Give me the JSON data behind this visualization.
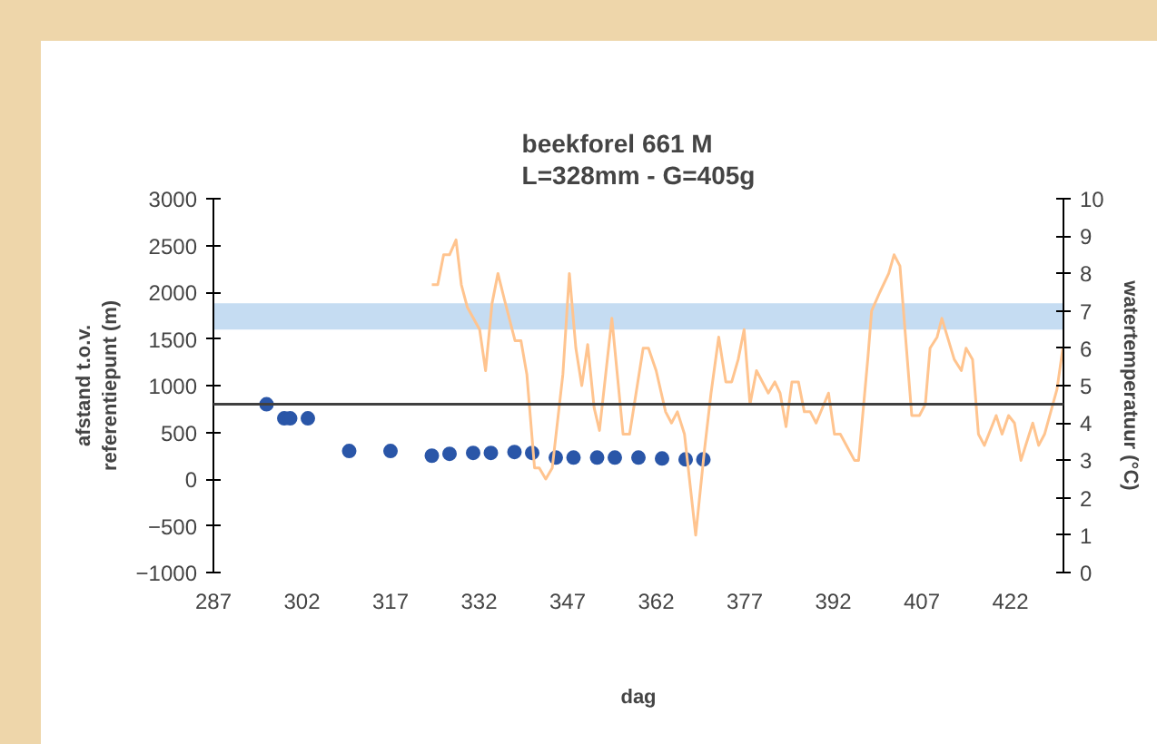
{
  "chart_data": {
    "type": "scatter",
    "title": "beekforel 661 M\nL=328mm - G=405g",
    "xlabel": "dag",
    "ylabel": "afstand t.o.v.\nreferentiepunt (m)",
    "y2label": "watertemperatuur (°C)",
    "xlim": [
      287,
      431
    ],
    "xticks": [
      287,
      302,
      317,
      332,
      347,
      362,
      377,
      392,
      407,
      422
    ],
    "ylim": [
      -1000,
      3000
    ],
    "yticks": [
      -1000,
      -500,
      0,
      500,
      1000,
      1500,
      2000,
      2500,
      3000
    ],
    "y2lim": [
      0,
      10
    ],
    "y2ticks": [
      0,
      1,
      2,
      3,
      4,
      5,
      6,
      7,
      8,
      9,
      10
    ],
    "grid": false,
    "series": [
      {
        "marker": "circle",
        "color": "#2a56a8",
        "x": [
          296,
          299,
          300,
          303,
          310,
          317,
          324,
          327,
          331,
          334,
          338,
          341,
          345,
          348,
          352,
          355,
          359,
          363,
          367,
          370
        ],
        "values": [
          800,
          650,
          650,
          650,
          300,
          300,
          250,
          270,
          280,
          280,
          290,
          280,
          230,
          230,
          230,
          230,
          230,
          220,
          210,
          210
        ]
      },
      {
        "type": "line",
        "axis": "y2",
        "color": "#ffc48f",
        "x": [
          324.0,
          325.0,
          326.0,
          327.0,
          328.1,
          329.0,
          330.0,
          332.1,
          333.1,
          334.2,
          335.2,
          336.3,
          338.1,
          339.1,
          340.1,
          341.4,
          342.2,
          343.3,
          344.4,
          346.2,
          347.3,
          348.4,
          349.4,
          350.4,
          351.5,
          352.4,
          354.5,
          356.4,
          357.5,
          359.8,
          360.7,
          362.0,
          363.6,
          364.6,
          365.6,
          366.8,
          368.7,
          370.2,
          371.3,
          372.6,
          373.8,
          374.8,
          375.9,
          376.9,
          377.9,
          379.0,
          381.0,
          382.1,
          383.0,
          384.0,
          385.0,
          386.1,
          387.1,
          388.1,
          389.1,
          391.2,
          392.2,
          393.2,
          395.6,
          396.3,
          397.9,
          398.5,
          399.9,
          401.4,
          402.3,
          403.3,
          405.3,
          406.6,
          407.6,
          408.4,
          409.6,
          410.4,
          412.5,
          413.7,
          414.5,
          415.6,
          416.6,
          417.6,
          419.6,
          420.6,
          421.7,
          422.7,
          423.8,
          425.8,
          426.8,
          427.8,
          429.9,
          430.9
        ],
        "values": [
          7.7,
          7.7,
          8.5,
          8.5,
          8.9,
          7.7,
          7.1,
          6.5,
          5.4,
          7.2,
          8.0,
          7.3,
          6.2,
          6.2,
          5.3,
          2.8,
          2.8,
          2.5,
          2.8,
          5.3,
          8.0,
          6.0,
          5.0,
          6.1,
          4.4,
          3.8,
          6.8,
          3.7,
          3.7,
          6.0,
          6.0,
          5.4,
          4.3,
          4.0,
          4.3,
          3.7,
          1.0,
          3.3,
          4.8,
          6.3,
          5.1,
          5.1,
          5.7,
          6.5,
          4.5,
          5.4,
          4.8,
          5.1,
          4.8,
          3.9,
          5.1,
          5.1,
          4.3,
          4.3,
          4.0,
          4.8,
          3.7,
          3.7,
          3.0,
          3.0,
          5.8,
          7.0,
          7.5,
          8.0,
          8.5,
          8.2,
          4.2,
          4.2,
          4.5,
          6.0,
          6.3,
          6.8,
          5.7,
          5.4,
          6.0,
          5.7,
          3.7,
          3.4,
          4.2,
          3.7,
          4.2,
          4.0,
          3.0,
          4.0,
          3.4,
          3.7,
          4.9,
          6.0
        ]
      }
    ],
    "ref_lines": [
      {
        "axis": "y",
        "value": 800,
        "color": "#404040"
      }
    ],
    "bands": [
      {
        "axis": "y2",
        "from": 6.5,
        "to": 7.2,
        "color": "#c5dcf2"
      }
    ]
  }
}
